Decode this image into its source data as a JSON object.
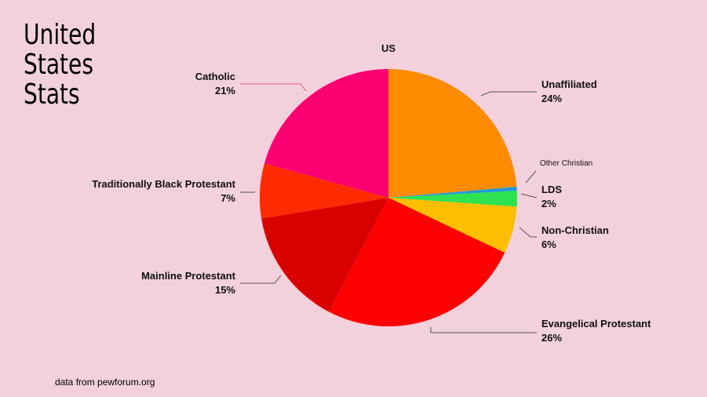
{
  "slide": {
    "title_lines": [
      "United",
      "States",
      "Stats"
    ],
    "source": "data from pewforum.org"
  },
  "chart_data": {
    "type": "pie",
    "title": "US",
    "slices": [
      {
        "name": "Unaffiliated",
        "value": 24,
        "label": "24%",
        "color": "#ff8c00"
      },
      {
        "name": "Other Christian",
        "value": 0.5,
        "label": "",
        "color": "#1f9bd9"
      },
      {
        "name": "LDS",
        "value": 2,
        "label": "2%",
        "color": "#2ee34f"
      },
      {
        "name": "Non-Christian",
        "value": 6,
        "label": "6%",
        "color": "#ffbe00"
      },
      {
        "name": "Evangelical Protestant",
        "value": 26,
        "label": "26%",
        "color": "#ff0000"
      },
      {
        "name": "Mainline Protestant",
        "value": 15,
        "label": "15%",
        "color": "#d90000"
      },
      {
        "name": "Traditionally Black Protestant",
        "value": 7,
        "label": "7%",
        "color": "#ff2a00"
      },
      {
        "name": "Catholic",
        "value": 21,
        "label": "21%",
        "color": "#fb0070"
      }
    ]
  }
}
